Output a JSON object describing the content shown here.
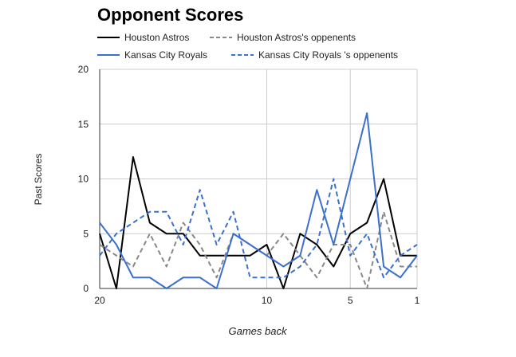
{
  "chart_data": {
    "type": "line",
    "title": "Opponent Scores",
    "xlabel": "Games back",
    "ylabel": "Past Scores",
    "x": [
      20,
      19,
      18,
      17,
      16,
      15,
      14,
      13,
      12,
      11,
      10,
      9,
      8,
      7,
      6,
      5,
      4,
      3,
      2,
      1
    ],
    "xlim": [
      20,
      1
    ],
    "ylim": [
      0,
      20
    ],
    "x_ticks": [
      20,
      10,
      5,
      1
    ],
    "y_ticks": [
      0,
      5,
      10,
      15,
      20
    ],
    "grid": true,
    "legend_position": "top",
    "series": [
      {
        "name": "Houston Astros",
        "color": "#000000",
        "dash": "solid",
        "values": [
          5,
          0,
          12,
          6,
          5,
          5,
          3,
          3,
          3,
          3,
          4,
          0,
          5,
          4,
          2,
          5,
          6,
          10,
          3,
          3
        ]
      },
      {
        "name": "Houston Astros's oppenents",
        "color": "#888888",
        "dash": "dashed",
        "values": [
          4,
          3,
          2,
          5,
          2,
          6,
          4,
          1,
          5,
          4,
          3,
          5,
          3,
          1,
          4,
          4,
          0,
          7,
          2,
          2
        ]
      },
      {
        "name": "Kansas City Royals",
        "color": "#3d6fcc",
        "dash": "solid",
        "values": [
          6,
          4,
          1,
          1,
          0,
          1,
          1,
          0,
          5,
          4,
          3,
          2,
          3,
          9,
          4,
          10,
          16,
          2,
          1,
          3
        ]
      },
      {
        "name": "Kansas City Royals 's oppenents",
        "color": "#3d6fcc",
        "dash": "dashed",
        "values": [
          3,
          5,
          6,
          7,
          7,
          4,
          9,
          4,
          7,
          1,
          1,
          1,
          2,
          4,
          10,
          3,
          5,
          1,
          3,
          4
        ]
      }
    ]
  }
}
